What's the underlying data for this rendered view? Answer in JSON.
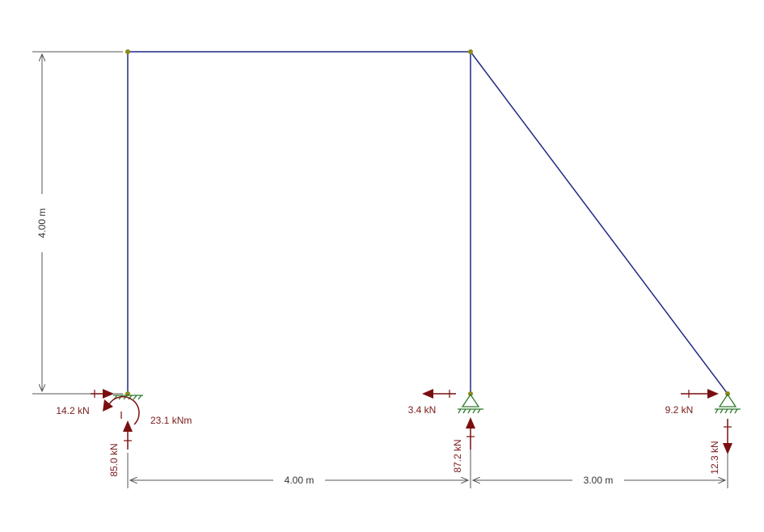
{
  "colors": {
    "member": "#1f2a86",
    "reaction": "#7a0f0f",
    "dimension": "#555555",
    "support": "#2d7a2d",
    "node": "#8a8a1a"
  },
  "dimensions": {
    "height": "4.00 m",
    "span_left": "4.00 m",
    "span_right": "3.00 m"
  },
  "reactions": {
    "left_horizontal": "14.2 kN",
    "left_moment": "23.1 kNm",
    "left_vertical": "85.0 kN",
    "middle_horizontal": "3.4 kN",
    "middle_vertical": "87.2 kN",
    "right_horizontal": "9.2 kN",
    "right_vertical": "12.3 kN"
  }
}
